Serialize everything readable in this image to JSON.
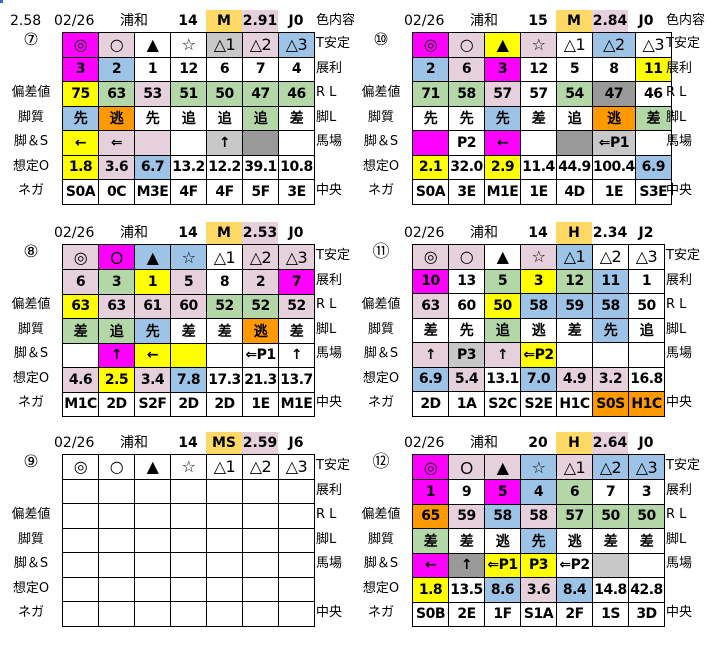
{
  "palette": {
    "m": "#ff00ff",
    "p": "#e6d0dc",
    "b": "#9dc3e6",
    "y": "#ffff00",
    "g": "#b4d7a8",
    "o": "#ff9900",
    "s": "#c8c8c8",
    "d": "#999999",
    "w": "#ffffff",
    "h": "#ffd966"
  },
  "row_labels": {
    "left": [
      "",
      "",
      "偏差値",
      "脚質",
      "脚＆S",
      "想定O",
      "ネガ"
    ],
    "right": [
      "T安定",
      "展利",
      "R L",
      "脚L",
      "馬場",
      "",
      "中央"
    ]
  },
  "panels": [
    {
      "race_no": "⑦",
      "slot": "L1",
      "header": {
        "prefix": "2.58",
        "date": "02/26",
        "venue": "浦和",
        "count": "14",
        "class": "M",
        "odds": "2.91",
        "odds_color": "p",
        "jockey": "J0",
        "note": "色内容"
      },
      "rows": [
        {
          "cells": [
            "◎",
            "○",
            "▲",
            "☆",
            "△1",
            "△2",
            "△3"
          ],
          "colors": "mpwwspb"
        },
        {
          "cells": [
            "3",
            "2",
            "1",
            "12",
            "6",
            "7",
            "4"
          ],
          "colors": "mbwwwww"
        },
        {
          "cells": [
            "75",
            "63",
            "53",
            "51",
            "50",
            "47",
            "46"
          ],
          "colors": "ygpgggg"
        },
        {
          "cells": [
            "先",
            "逃",
            "先",
            "追",
            "追",
            "追",
            "差"
          ],
          "colors": "bowwwgw"
        },
        {
          "cells": [
            "←",
            "⇐",
            "",
            "",
            "↑",
            "",
            ""
          ],
          "colors": "yppwsdw"
        },
        {
          "cells": [
            "1.8",
            "3.6",
            "6.7",
            "13.2",
            "12.2",
            "39.1",
            "10.8"
          ],
          "colors": "ypbwwww"
        },
        {
          "cells": [
            "S0A",
            "0C",
            "M3E",
            "4F",
            "4F",
            "5F",
            "3E"
          ],
          "colors": "wwwwwww"
        }
      ]
    },
    {
      "race_no": "⑩",
      "slot": "R1",
      "header": {
        "prefix": "",
        "date": "02/26",
        "venue": "浦和",
        "count": "15",
        "class": "M",
        "odds": "2.84",
        "odds_color": "p",
        "jockey": "J0",
        "note": "色内容"
      },
      "rows": [
        {
          "cells": [
            "◎",
            "○",
            "▲",
            "☆",
            "△1",
            "△2",
            "△3"
          ],
          "colors": "mpypwbw"
        },
        {
          "cells": [
            "2",
            "6",
            "3",
            "12",
            "5",
            "8",
            "11"
          ],
          "colors": "bpmwwwy"
        },
        {
          "cells": [
            "71",
            "58",
            "57",
            "57",
            "54",
            "47",
            "46"
          ],
          "colors": "ggpwgdw"
        },
        {
          "cells": [
            "先",
            "先",
            "先",
            "差",
            "追",
            "逃",
            "差"
          ],
          "colors": "wwbwwog"
        },
        {
          "cells": [
            "",
            "P2",
            "←",
            "",
            "",
            "⇐P1",
            ""
          ],
          "colors": "mwmwdsw"
        },
        {
          "cells": [
            "2.1",
            "32.0",
            "2.9",
            "11.4",
            "44.9",
            "100.4",
            "6.9"
          ],
          "colors": "ywywwwb"
        },
        {
          "cells": [
            "S0A",
            "3E",
            "M1E",
            "1E",
            "4D",
            "1E",
            "S3E"
          ],
          "colors": "wwwwwww"
        }
      ]
    },
    {
      "race_no": "⑧",
      "slot": "L2",
      "header": {
        "prefix": "",
        "date": "02/26",
        "venue": "浦和",
        "count": "14",
        "class": "M",
        "odds": "2.53",
        "odds_color": "p",
        "jockey": "J0",
        "note": ""
      },
      "rows": [
        {
          "cells": [
            "◎",
            "Ｏ",
            "▲",
            "☆",
            "△1",
            "△2",
            "△3"
          ],
          "colors": "pmbbwpp"
        },
        {
          "cells": [
            "6",
            "3",
            "1",
            "5",
            "8",
            "2",
            "7"
          ],
          "colors": "pgypwpm"
        },
        {
          "cells": [
            "63",
            "63",
            "61",
            "60",
            "52",
            "52",
            "52"
          ],
          "colors": "ypppggp"
        },
        {
          "cells": [
            "差",
            "追",
            "先",
            "差",
            "差",
            "逃",
            "差"
          ],
          "colors": "ggbwwow"
        },
        {
          "cells": [
            "",
            "↑",
            "←",
            "",
            "",
            "⇐P1",
            "↑"
          ],
          "colors": "wmyywww"
        },
        {
          "cells": [
            "4.6",
            "2.5",
            "3.4",
            "7.8",
            "17.3",
            "21.3",
            "13.7"
          ],
          "colors": "pypbwww"
        },
        {
          "cells": [
            "M1C",
            "2D",
            "S2F",
            "2D",
            "2D",
            "1E",
            "M1E"
          ],
          "colors": "wwwwwww"
        }
      ]
    },
    {
      "race_no": "⑪",
      "slot": "R2",
      "header": {
        "prefix": "",
        "date": "02/26",
        "venue": "浦和",
        "count": "14",
        "class": "H",
        "odds": "2.34",
        "odds_color": "w",
        "jockey": "J2",
        "note": ""
      },
      "rows": [
        {
          "cells": [
            "◎",
            "○",
            "▲",
            "☆",
            "△1",
            "△2",
            "△3"
          ],
          "colors": "ppwpbww"
        },
        {
          "cells": [
            "10",
            "13",
            "5",
            "3",
            "12",
            "11",
            "1"
          ],
          "colors": "mwgygbw"
        },
        {
          "cells": [
            "63",
            "60",
            "50",
            "58",
            "59",
            "58",
            "50"
          ],
          "colors": "pwybbbw"
        },
        {
          "cells": [
            "差",
            "先",
            "追",
            "逃",
            "差",
            "先",
            "追"
          ],
          "colors": "wwgwwbw"
        },
        {
          "cells": [
            "↑",
            "P3",
            "↑",
            "⇐P2",
            "",
            "",
            ""
          ],
          "colors": "pspywww"
        },
        {
          "cells": [
            "6.9",
            "5.4",
            "13.1",
            "7.0",
            "4.9",
            "3.2",
            "16.8"
          ],
          "colors": "bpwbppw"
        },
        {
          "cells": [
            "2D",
            "1A",
            "S2C",
            "S2E",
            "H1C",
            "S0S",
            "H1C"
          ],
          "colors": "wwwwwoo"
        }
      ]
    },
    {
      "race_no": "⑨",
      "slot": "L3",
      "header": {
        "prefix": "",
        "date": "02/26",
        "venue": "浦和",
        "count": "14",
        "class": "MS",
        "odds": "2.59",
        "odds_color": "p",
        "jockey": "J6",
        "note": ""
      },
      "rows": [
        {
          "cells": [
            "◎",
            "○",
            "▲",
            "☆",
            "△1",
            "△2",
            "△3"
          ],
          "colors": "wwwwwww"
        },
        {
          "cells": [
            "",
            "",
            "",
            "",
            "",
            "",
            ""
          ],
          "colors": "wwwwwww"
        },
        {
          "cells": [
            "",
            "",
            "",
            "",
            "",
            "",
            ""
          ],
          "colors": "wwwwwww"
        },
        {
          "cells": [
            "",
            "",
            "",
            "",
            "",
            "",
            ""
          ],
          "colors": "wwwwwww"
        },
        {
          "cells": [
            "",
            "",
            "",
            "",
            "",
            "",
            ""
          ],
          "colors": "wwwwwww"
        },
        {
          "cells": [
            "",
            "",
            "",
            "",
            "",
            "",
            ""
          ],
          "colors": "wwwwwww"
        },
        {
          "cells": [
            "",
            "",
            "",
            "",
            "",
            "",
            ""
          ],
          "colors": "wwwwwww"
        }
      ]
    },
    {
      "race_no": "⑫",
      "slot": "R3",
      "header": {
        "prefix": "",
        "date": "02/26",
        "venue": "浦和",
        "count": "20",
        "class": "H",
        "odds": "2.64",
        "odds_color": "p",
        "jockey": "J0",
        "note": ""
      },
      "rows": [
        {
          "cells": [
            "◎",
            "Ｏ",
            "▲",
            "☆",
            "△1",
            "△2",
            "△3"
          ],
          "colors": "mppbpbb"
        },
        {
          "cells": [
            "1",
            "9",
            "5",
            "4",
            "6",
            "7",
            "3"
          ],
          "colors": "mwmbgww"
        },
        {
          "cells": [
            "65",
            "59",
            "58",
            "58",
            "57",
            "50",
            "50"
          ],
          "colors": "opbpggg"
        },
        {
          "cells": [
            "差",
            "差",
            "逃",
            "先",
            "逃",
            "差",
            "差"
          ],
          "colors": "gwwbwww"
        },
        {
          "cells": [
            "←",
            "↑",
            "⇐P1",
            "P3",
            "⇐P2",
            "",
            ""
          ],
          "colors": "mdyywsw"
        },
        {
          "cells": [
            "1.8",
            "13.5",
            "8.6",
            "3.6",
            "8.4",
            "14.8",
            "42.8"
          ],
          "colors": "ywbpbww"
        },
        {
          "cells": [
            "S0B",
            "2E",
            "1F",
            "S1A",
            "2F",
            "1S",
            "3D"
          ],
          "colors": "wwwwwww"
        }
      ]
    }
  ]
}
